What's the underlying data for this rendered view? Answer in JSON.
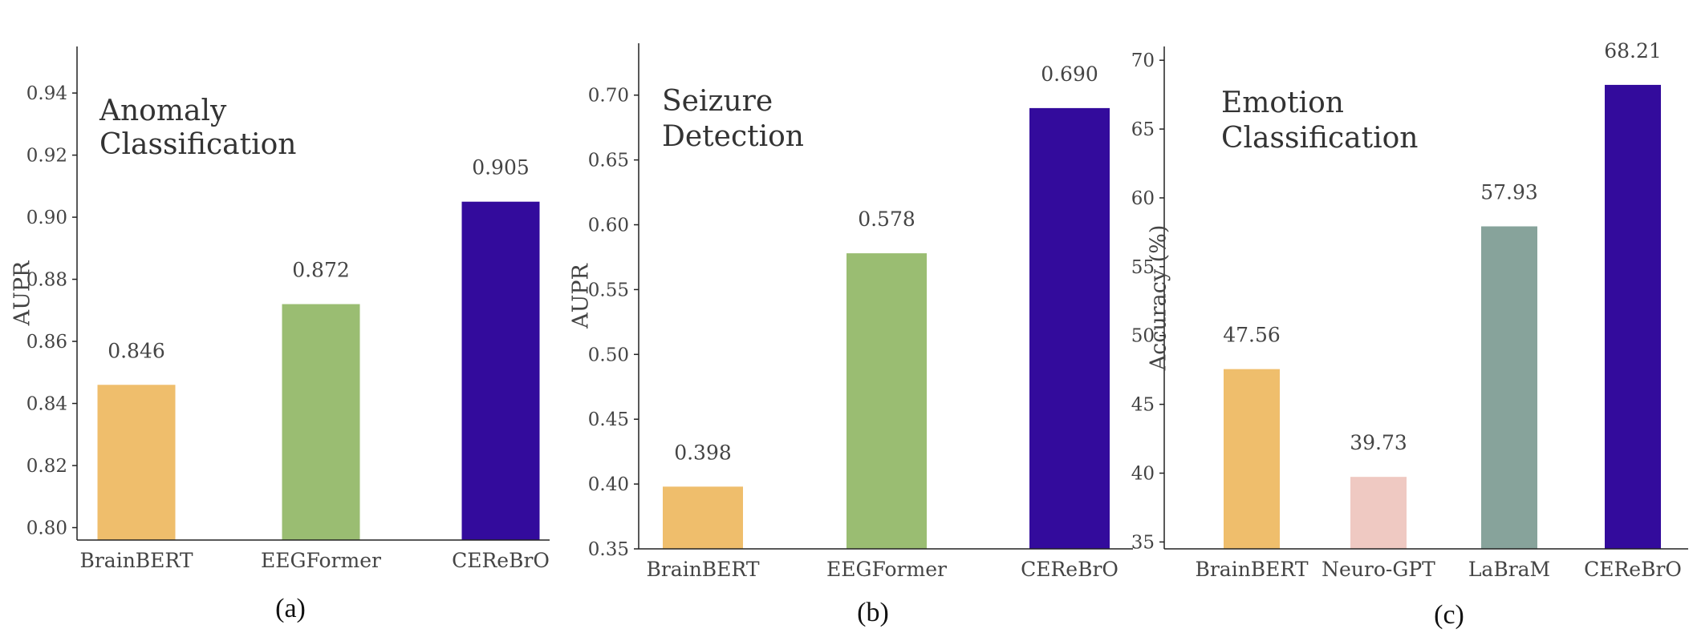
{
  "chart_data": [
    {
      "type": "bar",
      "panel_label": "(a)",
      "title_lines": [
        "Anomaly",
        "Classification"
      ],
      "ylabel": "AUPR",
      "xlabel": "",
      "categories": [
        "BrainBERT",
        "EEGFormer",
        "CEReBrO"
      ],
      "values": [
        0.846,
        0.872,
        0.905
      ],
      "value_labels": [
        "0.846",
        "0.872",
        "0.905"
      ],
      "colors": [
        "#EFBE6C",
        "#9ABD72",
        "#330B9C"
      ],
      "ylim": [
        0.796,
        0.955
      ],
      "yticks": [
        0.8,
        0.82,
        0.84,
        0.86,
        0.88,
        0.9,
        0.92,
        0.94
      ],
      "ytick_labels": [
        "0.80",
        "0.82",
        "0.84",
        "0.86",
        "0.88",
        "0.90",
        "0.92",
        "0.94"
      ],
      "grid": false
    },
    {
      "type": "bar",
      "panel_label": "(b)",
      "title_lines": [
        "Seizure",
        "Detection"
      ],
      "ylabel": "AUPR",
      "xlabel": "",
      "categories": [
        "BrainBERT",
        "EEGFormer",
        "CEReBrO"
      ],
      "values": [
        0.398,
        0.578,
        0.69
      ],
      "value_labels": [
        "0.398",
        "0.578",
        "0.690"
      ],
      "colors": [
        "#EFBE6C",
        "#9ABD72",
        "#330B9C"
      ],
      "ylim": [
        0.35,
        0.74
      ],
      "yticks": [
        0.35,
        0.4,
        0.45,
        0.5,
        0.55,
        0.6,
        0.65,
        0.7
      ],
      "ytick_labels": [
        "0.35",
        "0.40",
        "0.45",
        "0.50",
        "0.55",
        "0.60",
        "0.65",
        "0.70"
      ],
      "grid": false
    },
    {
      "type": "bar",
      "panel_label": "(c)",
      "title_lines": [
        "Emotion",
        "Classification"
      ],
      "ylabel": "Accuracy (%)",
      "xlabel": "",
      "categories": [
        "BrainBERT",
        "Neuro-GPT",
        "LaBraM",
        "CEReBrO"
      ],
      "values": [
        47.56,
        39.73,
        57.93,
        68.21
      ],
      "value_labels": [
        "47.56",
        "39.73",
        "57.93",
        "68.21"
      ],
      "colors": [
        "#EFBE6C",
        "#EFC9C2",
        "#87A39B",
        "#330B9C"
      ],
      "ylim": [
        34.5,
        71.0
      ],
      "yticks": [
        35,
        40,
        45,
        50,
        55,
        60,
        65,
        70
      ],
      "ytick_labels": [
        "35",
        "40",
        "45",
        "50",
        "55",
        "60",
        "65",
        "70"
      ],
      "grid": false
    }
  ]
}
